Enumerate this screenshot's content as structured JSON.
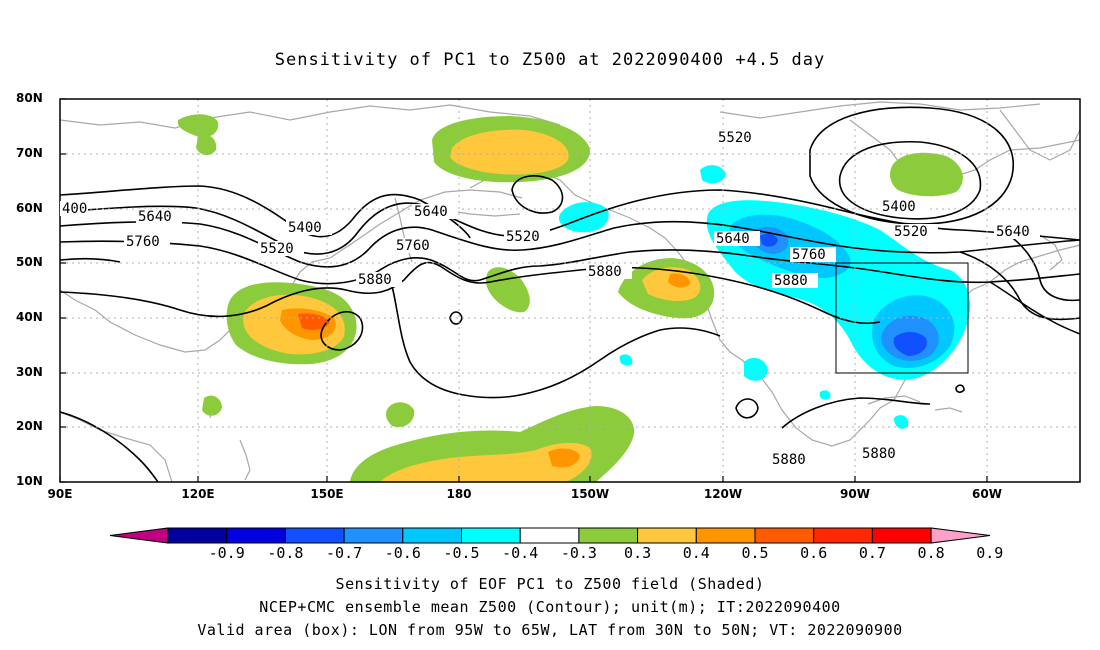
{
  "title": "Sensitivity of PC1 to Z500 at 2022090400 +4.5 day",
  "y_ticks": [
    "80N",
    "70N",
    "60N",
    "50N",
    "40N",
    "30N",
    "20N",
    "10N"
  ],
  "x_ticks": [
    "90E",
    "120E",
    "150E",
    "180",
    "150W",
    "120W",
    "90W",
    "60W"
  ],
  "contour_labels": [
    "400",
    "5640",
    "5760",
    "5400",
    "5520",
    "5880",
    "5640",
    "5760",
    "5520",
    "5880",
    "5520",
    "5640",
    "5760",
    "5880",
    "5400",
    "5520",
    "5640",
    "5880",
    "5880"
  ],
  "colorbar": {
    "labels": [
      "-0.9",
      "-0.8",
      "-0.7",
      "-0.6",
      "-0.5",
      "-0.4",
      "-0.3",
      "0.3",
      "0.4",
      "0.5",
      "0.6",
      "0.7",
      "0.8",
      "0.9"
    ],
    "colors": [
      "#0000a0",
      "#0000e0",
      "#1050ff",
      "#2090ff",
      "#00c8ff",
      "#00ffff",
      "#ffffff",
      "#8ccc3c",
      "#ffc83c",
      "#ff9600",
      "#ff5a00",
      "#ff2800",
      "#ff0000"
    ],
    "low_color": "#c00080",
    "high_color": "#ffa0c8"
  },
  "footer": {
    "line1": "Sensitivity of EOF PC1 to Z500 field (Shaded)",
    "line2": "NCEP+CMC ensemble mean Z500 (Contour); unit(m); IT:2022090400",
    "line3": "Valid area (box): LON from 95W to 65W, LAT from 30N to 50N; VT: 2022090900"
  }
}
